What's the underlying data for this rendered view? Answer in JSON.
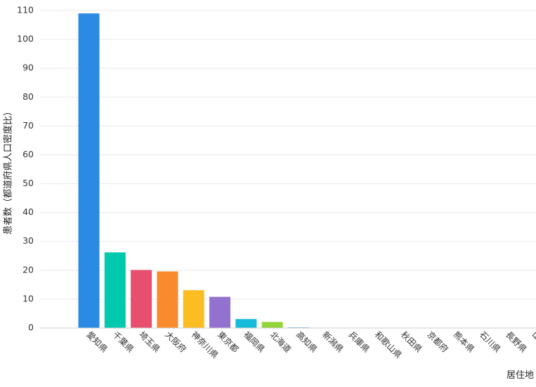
{
  "chart_data": {
    "type": "bar",
    "xlabel": "居住地",
    "ylabel": "患者数（都道府県人口密度比）",
    "ylim": [
      0,
      110
    ],
    "yticks": [
      0,
      10,
      20,
      30,
      40,
      50,
      60,
      70,
      80,
      90,
      100,
      110
    ],
    "grid": true,
    "categories": [
      "愛知県",
      "千葉県",
      "埼玉県",
      "大阪府",
      "神奈川県",
      "東京都",
      "福岡県",
      "北海道",
      "高知県",
      "新潟県",
      "兵庫県",
      "和歌山県",
      "秋田県",
      "京都府",
      "熊本県",
      "石川県",
      "長野県",
      "山"
    ],
    "values": [
      109,
      26.2,
      20.1,
      19.6,
      13.1,
      10.8,
      3.1,
      2.1,
      0.2,
      0.1,
      0,
      0,
      0,
      0,
      0,
      0,
      0,
      0
    ],
    "colors": [
      "#2b8ae3",
      "#00c9ad",
      "#e84f6e",
      "#f98b2e",
      "#fbbd22",
      "#9371cf",
      "#16bcd9",
      "#93d43a",
      "#2b8ae3",
      "#00c9ad",
      "#e84f6e",
      "#f98b2e",
      "#fbbd22",
      "#9371cf",
      "#16bcd9",
      "#93d43a",
      "#2b8ae3",
      "#00c9ad"
    ]
  }
}
